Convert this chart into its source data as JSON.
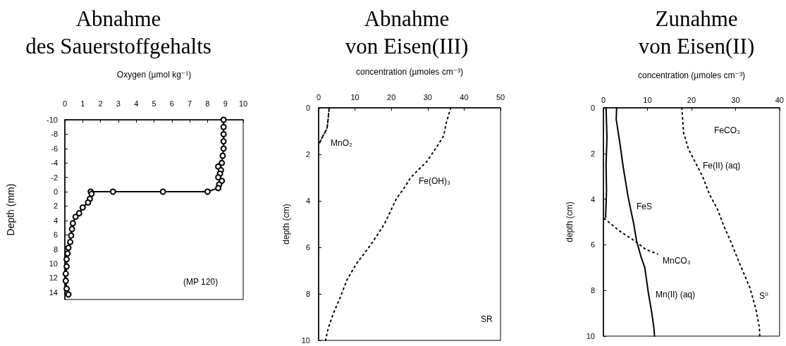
{
  "chart_data": [
    {
      "type": "line",
      "title": "Abnahme",
      "subtitle": "des Sauerstoffgehalts",
      "xlabel": "Oxygen (µmol kg⁻¹)",
      "ylabel": "Depth (mm)",
      "xlim": [
        0,
        10
      ],
      "xticks": [
        0,
        1,
        2,
        3,
        4,
        5,
        6,
        7,
        8,
        9,
        10
      ],
      "ylim": [
        15,
        -10
      ],
      "yticks": [
        -10,
        -8,
        -6,
        -4,
        -2,
        0,
        2,
        4,
        6,
        8,
        10,
        12,
        14
      ],
      "marker": "circle",
      "annotations": [
        "(MP 120)"
      ],
      "series": [
        {
          "color": "#000000",
          "line_style": "solid",
          "x": [
            8.9,
            8.9,
            8.9,
            8.9,
            8.9,
            8.85,
            8.8,
            8.6,
            8.75,
            8.7,
            8.6,
            8.8,
            8.65,
            8.6,
            8.0,
            5.5,
            2.7,
            1.45,
            1.5,
            1.4,
            1.3,
            1.0,
            0.8,
            0.6,
            0.45,
            0.4,
            0.35,
            0.3,
            0.2,
            0.15,
            0.1,
            0.1,
            0.05,
            0.05,
            0.1,
            0.2
          ],
          "values": [
            -10,
            -9,
            -8,
            -7,
            -6,
            -5,
            -4,
            -3.5,
            -3,
            -2.5,
            -2,
            -1.5,
            -1,
            -0.5,
            0,
            0,
            0,
            0,
            0.3,
            1,
            1.5,
            2.2,
            3,
            3.5,
            4.4,
            5.2,
            6.1,
            7,
            7.8,
            8.6,
            9.4,
            10.4,
            11.4,
            12.4,
            13.5,
            14.3
          ]
        }
      ]
    },
    {
      "type": "line",
      "title": "Abnahme",
      "subtitle": "von Eisen(III)",
      "xlabel": "concentration (µmoles cm⁻³)",
      "ylabel": "depth (cm)",
      "xlim": [
        0,
        50
      ],
      "xticks": [
        0,
        10,
        20,
        30,
        40,
        50
      ],
      "ylim": [
        10,
        0
      ],
      "yticks": [
        0,
        2,
        4,
        6,
        8,
        10
      ],
      "annotations": [
        "MnO₂",
        "Fe(OH)₃",
        "SR"
      ],
      "series": [
        {
          "color": "#000000",
          "line_style": "dashed",
          "x": [
            2.9,
            2.6,
            2.3,
            1.2,
            0.3
          ],
          "values": [
            0,
            0.5,
            0.9,
            1.2,
            1.5
          ]
        },
        {
          "color": "#000000",
          "line_style": "dotted",
          "x": [
            36.3,
            35.0,
            34.4,
            32.8,
            29.8,
            27.2,
            25.3,
            23.3,
            21.4,
            18.1,
            14.3,
            10.4,
            7.8,
            5.8,
            3.9,
            2.6,
            1.9
          ],
          "values": [
            0,
            0.7,
            1.2,
            1.6,
            2.3,
            2.7,
            3.0,
            3.5,
            3.9,
            5.0,
            5.9,
            6.7,
            7.4,
            8.2,
            8.9,
            9.5,
            10
          ]
        }
      ]
    },
    {
      "type": "line",
      "title": "Zunahme",
      "subtitle": "von Eisen(II)",
      "xlabel": "concentration (µmoles cm⁻³)",
      "ylabel": "depth (cm)",
      "xlim": [
        0,
        40
      ],
      "xticks": [
        0,
        10,
        20,
        30,
        40
      ],
      "ylim": [
        10,
        0
      ],
      "yticks": [
        0,
        2,
        4,
        6,
        8,
        10
      ],
      "annotations": [
        "FeCO₃",
        "Fe(II) (aq)",
        "FeS",
        "MnCO₃",
        "Mn(II) (aq)",
        "S⁰"
      ],
      "series": [
        {
          "color": "#000000",
          "line_style": "solid",
          "x": [
            0.6,
            0.8,
            0.6,
            0.7,
            0.5
          ],
          "values": [
            0,
            1.3,
            2.5,
            3.6,
            4.8
          ]
        },
        {
          "color": "#000000",
          "line_style": "solid",
          "x": [
            3.0,
            2.9,
            3.7,
            4.5,
            5.6,
            6.9,
            7.5,
            8.5,
            9.4,
            10.2,
            11.0,
            11.5,
            11.6
          ],
          "values": [
            0,
            0.5,
            1.5,
            2.6,
            3.9,
            5.1,
            5.8,
            6.5,
            7.0,
            8.1,
            9.0,
            9.7,
            10
          ]
        },
        {
          "color": "#000000",
          "line_style": "dotted",
          "x": [
            0.2,
            3.7,
            6.9,
            9.6,
            12.3
          ],
          "values": [
            4.85,
            5.4,
            5.8,
            6.2,
            6.4
          ]
        },
        {
          "color": "#000000",
          "line_style": "dotted",
          "x": [
            17.8,
            18.0,
            18.2,
            19.3,
            20.9,
            22.5,
            24.1,
            25.8,
            27.4,
            29.0,
            31.1,
            33.3,
            34.6,
            35.4,
            35.5
          ],
          "values": [
            0,
            0.5,
            1.1,
            1.8,
            2.4,
            3.0,
            3.8,
            4.4,
            5.2,
            5.9,
            6.9,
            7.9,
            8.8,
            9.6,
            10
          ]
        }
      ]
    }
  ]
}
